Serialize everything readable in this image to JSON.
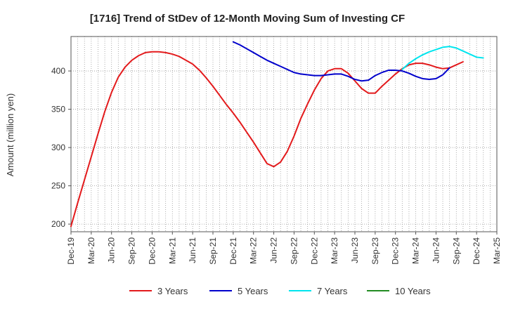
{
  "chart_data": {
    "type": "line",
    "title": "[1716]  Trend of StDev of 12-Month Moving Sum of Investing CF",
    "xlabel": "",
    "ylabel": "Amount (million yen)",
    "x_ticks": [
      "Dec-19",
      "Mar-20",
      "Jun-20",
      "Sep-20",
      "Dec-20",
      "Mar-21",
      "Jun-21",
      "Sep-21",
      "Dec-21",
      "Mar-22",
      "Jun-22",
      "Sep-22",
      "Dec-22",
      "Mar-23",
      "Jun-23",
      "Sep-23",
      "Dec-23",
      "Mar-24",
      "Jun-24",
      "Sep-24",
      "Dec-24",
      "Mar-25"
    ],
    "y_ticks": [
      200,
      250,
      300,
      350,
      400
    ],
    "ylim": [
      190,
      445
    ],
    "grid": true,
    "legend_position": "bottom",
    "series": [
      {
        "name": "3 Years",
        "color": "#e31a1c",
        "start": 0,
        "values": [
          197,
          228,
          258,
          288,
          318,
          347,
          372,
          392,
          405,
          414,
          420,
          424,
          425,
          425,
          424,
          422,
          419,
          414,
          409,
          401,
          391,
          380,
          368,
          356,
          345,
          333,
          320,
          307,
          293,
          279,
          275,
          281,
          295,
          315,
          338,
          357,
          375,
          390,
          400,
          403,
          403,
          397,
          387,
          377,
          371,
          371,
          380,
          388,
          396,
          403,
          408,
          410,
          410,
          408,
          405,
          403,
          404,
          408,
          412
        ]
      },
      {
        "name": "5 Years",
        "color": "#0000cc",
        "start": 24,
        "values": [
          438,
          434,
          429,
          424,
          419,
          414,
          410,
          406,
          402,
          398,
          396,
          395,
          394,
          394,
          395,
          396,
          396,
          393,
          389,
          387,
          388,
          394,
          398,
          401,
          401,
          400,
          397,
          393,
          390,
          389,
          390,
          395,
          404
        ]
      },
      {
        "name": "7 Years",
        "color": "#00e5ee",
        "start": 49,
        "values": [
          402,
          410,
          416,
          421,
          425,
          428,
          431,
          432,
          430,
          426,
          422,
          418,
          417
        ]
      },
      {
        "name": "10 Years",
        "color": "#228b22",
        "start": 0,
        "values": []
      }
    ]
  }
}
